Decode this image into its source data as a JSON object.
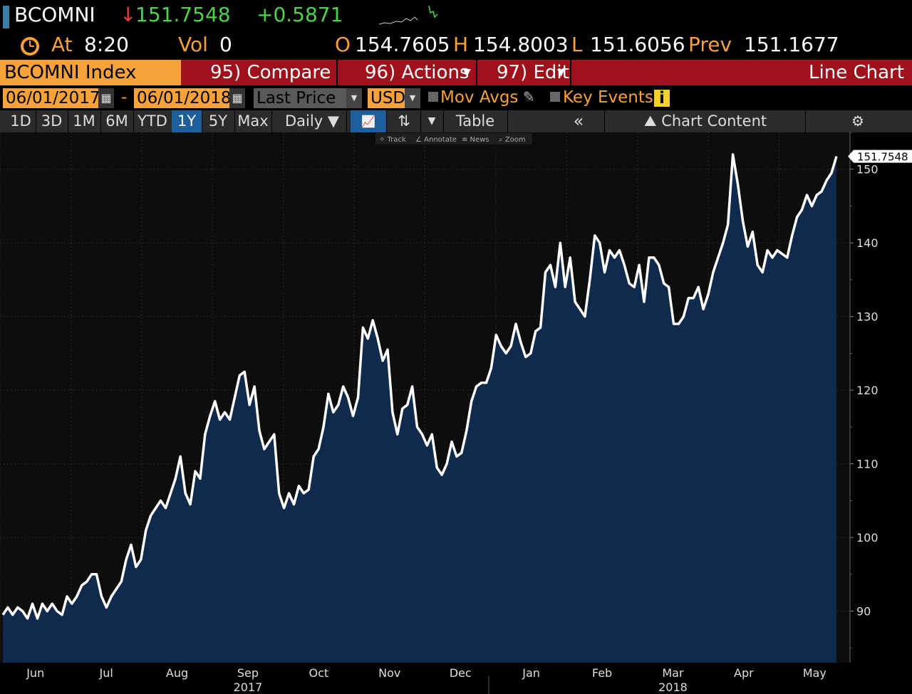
{
  "ticker": {
    "symbol": "BCOMNI",
    "arrow": "↓",
    "last": "151.7548",
    "change": "+0.5871"
  },
  "quote": {
    "at_label": "At",
    "time": "8:20",
    "vol_label": "Vol",
    "vol": "0",
    "open_label": "O",
    "open": "154.7605",
    "high_label": "H",
    "high": "154.8003",
    "low_label": "L",
    "low": "151.6056",
    "prev_label": "Prev",
    "prev": "151.1677"
  },
  "menu": {
    "security": "BCOMNI Index",
    "compare": "95) Compare",
    "actions": "96) Actions",
    "edit": "97) Edit",
    "chart_title": "Line Chart"
  },
  "controls": {
    "start_date": "06/01/2017",
    "dash": "-",
    "end_date": "06/01/2018",
    "field": "Last Price",
    "currency": "USD",
    "mov_avgs": "Mov Avgs",
    "key_events": "Key Events",
    "info": "i"
  },
  "ranges": {
    "items": [
      "1D",
      "3D",
      "1M",
      "6M",
      "YTD",
      "1Y",
      "5Y",
      "Max"
    ],
    "active": "1Y",
    "frequency": "Daily ▼",
    "table": "Table",
    "collapse": "«",
    "chart_content": "Chart Content"
  },
  "subtools": [
    "Track",
    "Annotate",
    "News",
    "Zoom"
  ],
  "colors": {
    "accent_orange": "#f7a13a",
    "menu_red": "#a0121b",
    "up_green": "#4fd34f",
    "down_red": "#e8393b",
    "area_fill": "#0f2a4c",
    "line": "#ffffff"
  },
  "chart_data": {
    "type": "area",
    "title": "",
    "xlabel": "",
    "ylabel": "",
    "ylim": [
      83,
      155
    ],
    "yticks": [
      90,
      100,
      110,
      120,
      130,
      140,
      150
    ],
    "month_labels": [
      "Jun",
      "Jul",
      "Aug",
      "Sep",
      "Oct",
      "Nov",
      "Dec",
      "Jan",
      "Feb",
      "Mar",
      "Apr",
      "May"
    ],
    "year_labels": [
      "2017",
      "2018"
    ],
    "last_value_label": "151.7548",
    "grid": true,
    "series": [
      {
        "values": [
          89.5,
          90.5,
          89.5,
          90.5,
          90,
          89,
          91,
          89,
          91,
          90,
          91,
          90,
          89.5,
          92,
          91,
          92,
          93.5,
          94,
          95,
          95,
          92,
          90.5,
          92,
          93,
          94,
          97,
          99,
          96,
          97,
          101,
          103,
          104,
          105,
          104,
          106,
          108,
          111,
          106,
          104.5,
          109,
          108,
          114,
          116.5,
          118.5,
          116,
          117,
          116,
          119,
          122,
          122.5,
          118,
          120.5,
          114.5,
          112,
          113,
          114,
          106,
          104,
          106,
          104.5,
          107,
          106,
          106.5,
          111,
          112,
          115,
          119.5,
          117,
          118,
          120.5,
          119,
          116.5,
          119,
          128.5,
          127,
          129.5,
          127,
          124,
          125.5,
          117,
          114,
          117.5,
          118,
          120.5,
          115,
          114,
          112.5,
          114,
          109.5,
          108.5,
          110,
          113,
          111,
          111.5,
          114.5,
          118.5,
          120.5,
          121,
          121,
          123,
          127.5,
          126,
          125,
          126,
          129,
          126.5,
          124.5,
          125,
          128,
          128.5,
          136,
          137,
          134,
          140,
          134,
          138,
          132,
          131,
          130,
          135,
          141,
          140,
          136,
          139,
          138,
          139,
          137,
          134.5,
          134,
          137,
          132,
          138,
          138,
          137,
          134.5,
          134,
          129,
          129,
          130,
          132.5,
          132.5,
          134,
          131,
          133,
          136,
          138,
          140,
          142.5,
          152,
          148,
          143,
          139.5,
          141.5,
          137,
          136,
          139,
          138,
          139,
          138.5,
          138,
          141,
          143.5,
          144.5,
          146.5,
          145,
          146.5,
          147,
          148.5,
          149.5,
          151.7548
        ]
      }
    ]
  }
}
